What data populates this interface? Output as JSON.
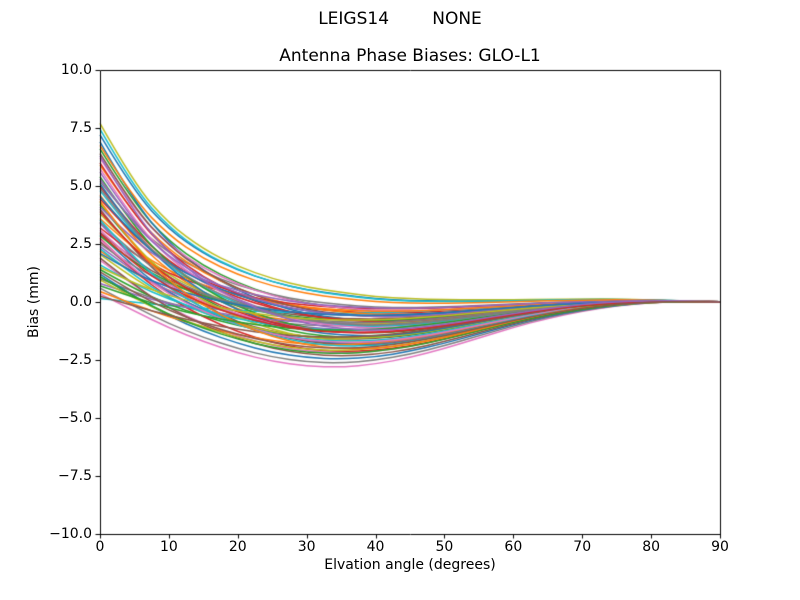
{
  "figure": {
    "background": "#ffffff",
    "suptitle": "LEIGS14        NONE",
    "title": "Antenna Phase Biases: GLO-L1",
    "xlabel": "Elvation angle (degrees)",
    "ylabel": "Bias (mm)"
  },
  "chart_data": {
    "type": "line",
    "title": "Antenna Phase Biases: GLO-L1",
    "suptitle": "LEIGS14        NONE",
    "xlabel": "Elvation angle (degrees)",
    "ylabel": "Bias (mm)",
    "xlim": [
      0,
      90
    ],
    "ylim": [
      -10,
      10
    ],
    "xticks": [
      0,
      10,
      20,
      30,
      40,
      50,
      60,
      70,
      80,
      90
    ],
    "xtick_labels": [
      "0",
      "10",
      "20",
      "30",
      "40",
      "50",
      "60",
      "70",
      "80",
      "90"
    ],
    "yticks": [
      10,
      7.5,
      5,
      2.5,
      0,
      -2.5,
      -5,
      -7.5,
      -10
    ],
    "ytick_labels": [
      "10.0",
      "7.5",
      "5.0",
      "2.5",
      "0.0",
      "−2.5",
      "−5.0",
      "−7.5",
      "−10.0"
    ],
    "grid": false,
    "legend": false,
    "n_series": 66,
    "description": "66 unlabeled station antenna phase-bias curves for GLO-L1; each starts between ~0.1 and ~7.7 mm at 0 deg elevation, dips to as low as ~-2.8 mm near 30-35 deg, and converges to ~0 mm by 90 deg.",
    "model": "y_mm at x[i] = a*decay[i] + b*dip[i]",
    "x": [
      0,
      5,
      10,
      15,
      20,
      25,
      30,
      35,
      40,
      45,
      50,
      55,
      60,
      65,
      70,
      75,
      80,
      85,
      90
    ],
    "decay": [
      1.0,
      0.672,
      0.465,
      0.333,
      0.245,
      0.184,
      0.141,
      0.113,
      0.085,
      0.068,
      0.055,
      0.045,
      0.036,
      0.03,
      0.024,
      0.02,
      0.012,
      0.006,
      0.001
    ],
    "dip": [
      0.0,
      -0.22,
      -0.45,
      -0.64,
      -0.8,
      -0.92,
      -0.99,
      -1.0,
      -0.95,
      -0.85,
      -0.71,
      -0.55,
      -0.39,
      -0.25,
      -0.14,
      -0.06,
      -0.01,
      0.005,
      0.0
    ],
    "color_cycle": [
      "#1f77b4",
      "#ff7f0e",
      "#2ca02c",
      "#d62728",
      "#9467bd",
      "#8c564b",
      "#e377c2",
      "#7f7f7f",
      "#bcbd22",
      "#17becf"
    ],
    "series": [
      {
        "c": 0,
        "a": 7.2,
        "b": 0.5
      },
      {
        "c": 1,
        "a": 4.6,
        "b": 1.8
      },
      {
        "c": 2,
        "a": 6.6,
        "b": 1.0
      },
      {
        "c": 3,
        "a": 5.0,
        "b": 1.3
      },
      {
        "c": 4,
        "a": 3.4,
        "b": 2.2
      },
      {
        "c": 5,
        "a": 2.6,
        "b": 1.9
      },
      {
        "c": 6,
        "a": 0.35,
        "b": 2.85
      },
      {
        "c": 7,
        "a": 0.6,
        "b": 2.7
      },
      {
        "c": 8,
        "a": 7.7,
        "b": 0.45
      },
      {
        "c": 9,
        "a": 7.45,
        "b": 0.55
      },
      {
        "c": 0,
        "a": 6.9,
        "b": 1.5
      },
      {
        "c": 1,
        "a": 2.2,
        "b": 1.2
      },
      {
        "c": 2,
        "a": 4.2,
        "b": 2.0
      },
      {
        "c": 3,
        "a": 4.45,
        "b": 0.9
      },
      {
        "c": 4,
        "a": 5.6,
        "b": 1.6
      },
      {
        "c": 5,
        "a": 3.0,
        "b": 1.05
      },
      {
        "c": 6,
        "a": 1.8,
        "b": 2.4
      },
      {
        "c": 7,
        "a": 5.2,
        "b": 0.7
      },
      {
        "c": 8,
        "a": 3.8,
        "b": 1.35
      },
      {
        "c": 9,
        "a": 0.15,
        "b": 0.5
      },
      {
        "c": 0,
        "a": 2.9,
        "b": 2.1
      },
      {
        "c": 1,
        "a": 5.9,
        "b": 1.1
      },
      {
        "c": 2,
        "a": 1.4,
        "b": 1.7
      },
      {
        "c": 3,
        "a": 3.2,
        "b": 0.6
      },
      {
        "c": 4,
        "a": 2.4,
        "b": 1.45
      },
      {
        "c": 5,
        "a": 4.0,
        "b": 2.3
      },
      {
        "c": 6,
        "a": 6.2,
        "b": 0.95
      },
      {
        "c": 7,
        "a": 1.0,
        "b": 1.15
      },
      {
        "c": 8,
        "a": 2.05,
        "b": 1.8
      },
      {
        "c": 9,
        "a": 4.8,
        "b": 1.55
      },
      {
        "c": 0,
        "a": 1.2,
        "b": 2.6
      },
      {
        "c": 1,
        "a": 3.6,
        "b": 0.75
      },
      {
        "c": 2,
        "a": 5.4,
        "b": 1.9
      },
      {
        "c": 3,
        "a": 2.75,
        "b": 2.45
      },
      {
        "c": 4,
        "a": 0.8,
        "b": 1.0
      },
      {
        "c": 5,
        "a": 6.4,
        "b": 1.25
      },
      {
        "c": 6,
        "a": 3.1,
        "b": 1.6
      },
      {
        "c": 7,
        "a": 2.5,
        "b": 0.85
      },
      {
        "c": 8,
        "a": 4.3,
        "b": 2.15
      },
      {
        "c": 9,
        "a": 1.6,
        "b": 1.4
      },
      {
        "c": 0,
        "a": 5.1,
        "b": 2.0
      },
      {
        "c": 1,
        "a": 0.45,
        "b": 1.9
      },
      {
        "c": 2,
        "a": 2.85,
        "b": 1.1
      },
      {
        "c": 3,
        "a": 6.0,
        "b": 1.45
      },
      {
        "c": 4,
        "a": 4.1,
        "b": 0.65
      },
      {
        "c": 5,
        "a": 1.9,
        "b": 2.55
      },
      {
        "c": 6,
        "a": 5.75,
        "b": 1.7
      },
      {
        "c": 7,
        "a": 3.45,
        "b": 1.25
      },
      {
        "c": 8,
        "a": 0.95,
        "b": 2.2
      },
      {
        "c": 9,
        "a": 2.3,
        "b": 1.95
      },
      {
        "c": 0,
        "a": 4.55,
        "b": 1.05
      },
      {
        "c": 1,
        "a": 6.75,
        "b": 0.6
      },
      {
        "c": 2,
        "a": 1.1,
        "b": 2.35
      },
      {
        "c": 3,
        "a": 3.9,
        "b": 1.75
      },
      {
        "c": 4,
        "a": 5.3,
        "b": 1.15
      },
      {
        "c": 5,
        "a": 0.25,
        "b": 1.55
      },
      {
        "c": 6,
        "a": 2.7,
        "b": 2.05
      },
      {
        "c": 7,
        "a": 4.9,
        "b": 1.5
      },
      {
        "c": 8,
        "a": 1.5,
        "b": 0.95
      },
      {
        "c": 9,
        "a": 3.55,
        "b": 2.3
      },
      {
        "c": 0,
        "a": 2.1,
        "b": 0.8
      },
      {
        "c": 1,
        "a": 4.35,
        "b": 2.5
      },
      {
        "c": 2,
        "a": 0.7,
        "b": 1.3
      },
      {
        "c": 3,
        "a": 2.95,
        "b": 1.65
      },
      {
        "c": 4,
        "a": 6.3,
        "b": 1.85
      },
      {
        "c": 5,
        "a": 1.3,
        "b": 2.15
      }
    ],
    "axis_color": "#000000",
    "spine_box": true,
    "line_width": 1.5
  }
}
